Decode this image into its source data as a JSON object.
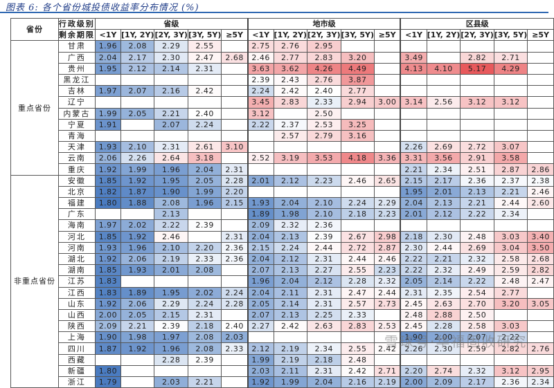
{
  "title": "图表 6: 各个省份城投债收益率分布情况 (%)",
  "header": {
    "province_label": "省份",
    "admin_level_label": "行政级别",
    "remaining_term_label": "剩余期限",
    "levels": [
      "省级",
      "地市级",
      "区县级"
    ],
    "terms": [
      "<1Y",
      "[1Y, 2Y)",
      "[2Y, 3Y)",
      "[3Y, 5Y)",
      "≥5Y"
    ]
  },
  "groups": [
    {
      "label": "重点省份",
      "rows": [
        {
          "province": "甘肃",
          "values": [
            "1.96",
            "2.08",
            "2.29",
            "2.55",
            "",
            "2.75",
            "2.76",
            "2.95",
            "",
            "",
            "",
            "",
            "",
            "",
            ""
          ]
        },
        {
          "province": "广西",
          "values": [
            "2.04",
            "2.17",
            "2.30",
            "2.47",
            "2.68",
            "2.46",
            "2.77",
            "2.83",
            "3.20",
            "",
            "3.49",
            "",
            "2.82",
            "2.71",
            ""
          ]
        },
        {
          "province": "贵州",
          "values": [
            "1.95",
            "2.12",
            "2.14",
            "2.31",
            "",
            "3.63",
            "3.62",
            "4.26",
            "4.49",
            "",
            "4.13",
            "4.10",
            "5.17",
            "4.29",
            ""
          ]
        },
        {
          "province": "黑龙江",
          "values": [
            "",
            "",
            "",
            "",
            "",
            "2.39",
            "2.43",
            "2.76",
            "3.87",
            "",
            "",
            "",
            "",
            "",
            ""
          ]
        },
        {
          "province": "吉林",
          "values": [
            "1.97",
            "2.07",
            "2.16",
            "2.42",
            "",
            "2.24",
            "2.42",
            "2.40",
            "2.77",
            "",
            "",
            "",
            "",
            "",
            ""
          ]
        },
        {
          "province": "辽宁",
          "values": [
            "",
            "",
            "",
            "",
            "",
            "3.45",
            "2.83",
            "2.33",
            "2.94",
            "3.00",
            "3.14",
            "2.56",
            "3.12",
            "3.12",
            ""
          ]
        },
        {
          "province": "内蒙古",
          "values": [
            "1.99",
            "2.05",
            "2.21",
            "2.40",
            "",
            "3.12",
            "",
            "2.50",
            "",
            "",
            "",
            "",
            "",
            "",
            ""
          ]
        },
        {
          "province": "宁夏",
          "values": [
            "1.91",
            "",
            "2.07",
            "2.24",
            "",
            "2.22",
            "2.37",
            "2.53",
            "3.25",
            "",
            "",
            "",
            "",
            "",
            ""
          ]
        },
        {
          "province": "青海",
          "values": [
            "",
            "",
            "",
            "",
            "",
            "",
            "2.57",
            "2.79",
            "3.16",
            "",
            "",
            "",
            "",
            "",
            ""
          ]
        },
        {
          "province": "天津",
          "values": [
            "1.93",
            "2.10",
            "2.31",
            "2.61",
            "3.10",
            "",
            "",
            "",
            "",
            "",
            "2.26",
            "2.69",
            "2.72",
            "3.07",
            ""
          ]
        },
        {
          "province": "云南",
          "values": [
            "2.06",
            "2.26",
            "2.64",
            "3.18",
            "",
            "2.52",
            "3.19",
            "3.53",
            "4.18",
            "3.36",
            "3.31",
            "3.56",
            "2.91",
            "3.58",
            ""
          ]
        },
        {
          "province": "重庆",
          "values": [
            "1.92",
            "1.99",
            "1.96",
            "2.04",
            "2.31",
            "",
            "",
            "",
            "",
            "",
            "2.21",
            "2.34",
            "2.51",
            "2.87",
            "2.86"
          ]
        }
      ]
    },
    {
      "label": "非重点省份",
      "rows": [
        {
          "province": "安徽",
          "values": [
            "1.85",
            "1.92",
            "1.95",
            "2.05",
            "2.28",
            "2.01",
            "2.12",
            "2.23",
            "2.46",
            "2.65",
            "2.15",
            "2.17",
            "2.36",
            "2.37",
            "2.38"
          ]
        },
        {
          "province": "北京",
          "values": [
            "1.82",
            "1.87",
            "1.90",
            "1.99",
            "2.20",
            "",
            "",
            "",
            "",
            "",
            "1.95",
            "2.01",
            "2.13",
            "2.21",
            "2.46"
          ]
        },
        {
          "province": "福建",
          "values": [
            "1.80",
            "1.88",
            "2.08",
            "1.96",
            "2.15",
            "1.93",
            "2.04",
            "2.10",
            "2.24",
            "2.29",
            "2.04",
            "2.13",
            "2.21",
            "2.44",
            "2.60"
          ]
        },
        {
          "province": "广东",
          "values": [
            "",
            "",
            "2.13",
            "",
            "",
            "1.89",
            "1.98",
            "2.10",
            "2.18",
            "2.23",
            "2.01",
            "2.12",
            "2.22",
            "2.34",
            ""
          ]
        },
        {
          "province": "海南",
          "values": [
            "1.97",
            "2.02",
            "2.22",
            "2.39",
            "",
            "2.09",
            "2.32",
            "2.36",
            "",
            "",
            "",
            "",
            "",
            "",
            ""
          ]
        },
        {
          "province": "河北",
          "values": [
            "1.85",
            "1.92",
            "2.46",
            "",
            "2.31",
            "2.04",
            "2.13",
            "2.39",
            "2.67",
            "2.98",
            "2.18",
            "2.30",
            "2.48",
            "3.03",
            "3.40"
          ]
        },
        {
          "province": "河南",
          "values": [
            "1.93",
            "1.96",
            "2.10",
            "2.20",
            "2.36",
            "2.15",
            "2.24",
            "2.44",
            "2.72",
            "2.87",
            "2.30",
            "2.44",
            "2.69",
            "3.04",
            "3.50"
          ]
        },
        {
          "province": "湖北",
          "values": [
            "1.92",
            "2.06",
            "2.19",
            "2.33",
            "2.36",
            "2.04",
            "2.12",
            "2.31",
            "2.44",
            "2.46",
            "2.22",
            "2.21",
            "2.32",
            "2.58",
            "2.68"
          ]
        },
        {
          "province": "湖南",
          "values": [
            "1.85",
            "1.93",
            "2.01",
            "2.08",
            "",
            "2.07",
            "2.13",
            "2.27",
            "2.55",
            "2.23",
            "2.22",
            "2.32",
            "2.49",
            "2.59",
            "2.82"
          ]
        },
        {
          "province": "江苏",
          "values": [
            "1.83",
            "",
            "",
            "",
            "",
            "1.96",
            "2.04",
            "2.12",
            "2.28",
            "2.32",
            "2.05",
            "2.14",
            "2.22",
            "2.48",
            "2.47"
          ]
        },
        {
          "province": "江西",
          "values": [
            "1.83",
            "1.89",
            "1.95",
            "2.02",
            "2.24",
            "2.04",
            "2.11",
            "2.31",
            "2.47",
            "2.44",
            "2.31",
            "2.35",
            "2.54",
            "2.77",
            ""
          ]
        },
        {
          "province": "山东",
          "values": [
            "1.92",
            "2.06",
            "2.29",
            "2.24",
            "2.28",
            "2.05",
            "2.14",
            "2.31",
            "2.57",
            "2.73",
            "2.45",
            "2.63",
            "2.70",
            "3.20",
            "3.05"
          ]
        },
        {
          "province": "山西",
          "values": [
            "2.00",
            "2.05",
            "2.15",
            "2.31",
            "",
            "2.07",
            "2.13",
            "2.25",
            "2.33",
            "",
            "2.48",
            "2.88",
            "2.50",
            "",
            ""
          ]
        },
        {
          "province": "陕西",
          "values": [
            "2.09",
            "2.21",
            "2.39",
            "2.18",
            "2.40",
            "2.27",
            "2.42",
            "2.63",
            "2.83",
            "2.53",
            "2.45",
            "2.28",
            "2.58",
            "3.03",
            ""
          ]
        },
        {
          "province": "上海",
          "values": [
            "1.90",
            "1.98",
            "1.97",
            "2.08",
            "2.03",
            "",
            "",
            "",
            "",
            "",
            "1.90",
            "2.00",
            "2.07",
            "2.22",
            ""
          ]
        },
        {
          "province": "四川",
          "values": [
            "1.87",
            "1.92",
            "1.96",
            "2.08",
            "2.33",
            "2.12",
            "2.19",
            "2.34",
            "2.55",
            "2.42",
            "2.26",
            "2.30",
            "2.59",
            "2.82",
            "2.76"
          ]
        },
        {
          "province": "西藏",
          "values": [
            "",
            "",
            "2.28",
            "2.39",
            "",
            "1.99",
            "2.19",
            "2.18",
            "2.48",
            "",
            "",
            "",
            "",
            "",
            ""
          ]
        },
        {
          "province": "新疆",
          "values": [
            "1.80",
            "",
            "",
            "",
            "",
            "2.03",
            "2.11",
            "2.31",
            "2.42",
            "2.71",
            "2.20",
            "2.74",
            "2.32",
            "3.12",
            "2.95"
          ]
        },
        {
          "province": "浙江",
          "values": [
            "1.79",
            "",
            "2.03",
            "2.21",
            "",
            "1.92",
            "1.99",
            "2.04",
            "2.16",
            "2.19",
            "2.00",
            "2.09",
            "2.17",
            "2.36",
            "2.34"
          ]
        }
      ]
    }
  ],
  "color_scale": {
    "low": "#4a7bc0",
    "mid": "#ffffff",
    "high": "#e8585b",
    "low_value": 1.8,
    "mid_value": 2.4,
    "high_value": 5.2
  },
  "watermark": "雪球号·华福固收研究"
}
